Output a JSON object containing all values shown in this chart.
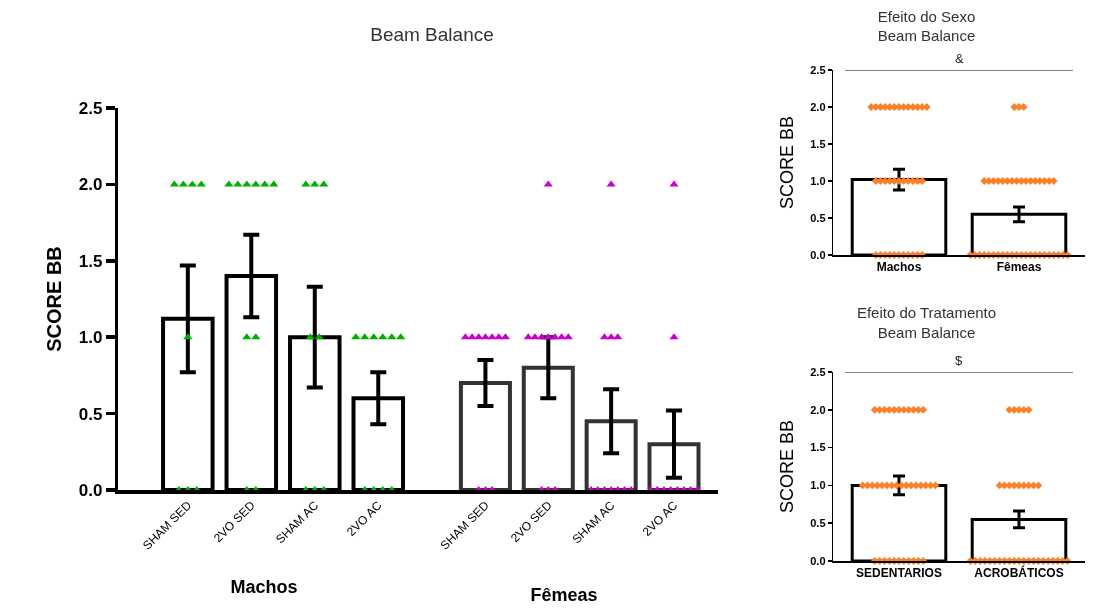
{
  "chart_data": [
    {
      "type": "bar",
      "title": "Beam Balance",
      "ylabel": "SCORE BB",
      "xlabel": "Machos",
      "categories": [
        "SHAM SED",
        "2VO SED",
        "SHAM AC",
        "2VO AC"
      ],
      "values": [
        1.12,
        1.4,
        1.0,
        0.6
      ],
      "errors": [
        0.35,
        0.27,
        0.33,
        0.17
      ],
      "colors": [
        "#000000",
        "#000000",
        "#000000",
        "#000000"
      ],
      "ylim": [
        0,
        2.5
      ],
      "yticks": [
        {
          "value": 0,
          "label": "0.0"
        },
        {
          "value": 0.5,
          "label": "0.5"
        },
        {
          "value": 1,
          "label": "1.0"
        },
        {
          "value": 1.5,
          "label": "1.5"
        },
        {
          "value": 2,
          "label": "2.0"
        },
        {
          "value": 2.5,
          "label": "2.5"
        }
      ],
      "series": [
        {
          "type": "scatter",
          "color": "#00b000",
          "marker": "triangle",
          "x": [
            "SHAM SED",
            "SHAM SED",
            "SHAM SED",
            "SHAM SED",
            "SHAM SED",
            "SHAM SED",
            "SHAM SED",
            "SHAM SED",
            "2VO SED",
            "2VO SED",
            "2VO SED",
            "2VO SED",
            "2VO SED",
            "2VO SED",
            "2VO SED",
            "2VO SED",
            "2VO SED",
            "2VO SED",
            "SHAM AC",
            "SHAM AC",
            "SHAM AC",
            "SHAM AC",
            "SHAM AC",
            "SHAM AC",
            "SHAM AC",
            "SHAM AC",
            "2VO AC",
            "2VO AC",
            "2VO AC",
            "2VO AC",
            "2VO AC",
            "2VO AC",
            "2VO AC",
            "2VO AC",
            "2VO AC",
            "2VO AC"
          ],
          "values": [
            2,
            2,
            2,
            2,
            1,
            0,
            0,
            0,
            2,
            2,
            2,
            2,
            2,
            2,
            1,
            1,
            0,
            0,
            2,
            2,
            2,
            1,
            1,
            0,
            0,
            0,
            1,
            1,
            1,
            1,
            1,
            1,
            0,
            0,
            0,
            0
          ]
        }
      ]
    },
    {
      "type": "bar",
      "xlabel": "Fêmeas",
      "categories": [
        "SHAM SED",
        "2VO SED",
        "SHAM AC",
        "2VO AC"
      ],
      "values": [
        0.7,
        0.8,
        0.45,
        0.3
      ],
      "errors": [
        0.15,
        0.2,
        0.21,
        0.22
      ],
      "colors": [
        "#333333",
        "#333333",
        "#333333",
        "#333333"
      ],
      "ylim": [
        0,
        2.5
      ],
      "tick_labels": "x",
      "series": [
        {
          "type": "scatter",
          "color": "#cc00cc",
          "marker": "triangle",
          "x": [
            "SHAM SED",
            "SHAM SED",
            "SHAM SED",
            "SHAM SED",
            "SHAM SED",
            "SHAM SED",
            "SHAM SED",
            "SHAM SED",
            "SHAM SED",
            "SHAM SED",
            "2VO SED",
            "2VO SED",
            "2VO SED",
            "2VO SED",
            "2VO SED",
            "2VO SED",
            "2VO SED",
            "2VO SED",
            "2VO SED",
            "2VO SED",
            "2VO SED",
            "SHAM AC",
            "SHAM AC",
            "SHAM AC",
            "SHAM AC",
            "SHAM AC",
            "SHAM AC",
            "SHAM AC",
            "SHAM AC",
            "SHAM AC",
            "SHAM AC",
            "SHAM AC",
            "2VO AC",
            "2VO AC",
            "2VO AC",
            "2VO AC",
            "2VO AC",
            "2VO AC",
            "2VO AC",
            "2VO AC",
            "2VO AC",
            "2VO AC"
          ],
          "values": [
            1,
            1,
            1,
            1,
            1,
            1,
            1,
            0,
            0,
            0,
            2,
            1,
            1,
            1,
            1,
            1,
            1,
            1,
            0,
            0,
            0,
            2,
            1,
            1,
            1,
            0,
            0,
            0,
            0,
            0,
            0,
            0,
            2,
            1,
            0,
            0,
            0,
            0,
            0,
            0,
            0,
            0
          ]
        }
      ]
    },
    {
      "type": "bar",
      "title": "Efeito do Sexo\nBeam Balance",
      "ylabel": "SCORE BB",
      "categories": [
        "Machos",
        "Fêmeas"
      ],
      "values": [
        1.02,
        0.55
      ],
      "errors": [
        0.14,
        0.1
      ],
      "colors": [
        "#000000",
        "#000000"
      ],
      "ylim": [
        0,
        2.5
      ],
      "yticks": [
        {
          "value": 0,
          "label": "0.0"
        },
        {
          "value": 0.5,
          "label": "0.5"
        },
        {
          "value": 1,
          "label": "1.0"
        },
        {
          "value": 1.5,
          "label": "1.5"
        },
        {
          "value": 2,
          "label": "2.0"
        },
        {
          "value": 2.5,
          "label": "2.5"
        }
      ],
      "annotations": [
        "&"
      ],
      "series": [
        {
          "type": "scatter",
          "color": "#ff7f27",
          "marker": "diamond",
          "x": [
            "Machos",
            "Machos",
            "Machos",
            "Machos",
            "Machos",
            "Machos",
            "Machos",
            "Machos",
            "Machos",
            "Machos",
            "Machos",
            "Machos",
            "Machos",
            "Machos",
            "Machos",
            "Machos",
            "Machos",
            "Machos",
            "Machos",
            "Machos",
            "Machos",
            "Machos",
            "Machos",
            "Machos",
            "Machos",
            "Machos",
            "Machos",
            "Machos",
            "Machos",
            "Machos",
            "Machos",
            "Machos",
            "Machos",
            "Machos",
            "Machos",
            "Fêmeas",
            "Fêmeas",
            "Fêmeas",
            "Fêmeas",
            "Fêmeas",
            "Fêmeas",
            "Fêmeas",
            "Fêmeas",
            "Fêmeas",
            "Fêmeas",
            "Fêmeas",
            "Fêmeas",
            "Fêmeas",
            "Fêmeas",
            "Fêmeas",
            "Fêmeas",
            "Fêmeas",
            "Fêmeas",
            "Fêmeas",
            "Fêmeas",
            "Fêmeas",
            "Fêmeas",
            "Fêmeas",
            "Fêmeas",
            "Fêmeas",
            "Fêmeas",
            "Fêmeas",
            "Fêmeas",
            "Fêmeas",
            "Fêmeas",
            "Fêmeas",
            "Fêmeas",
            "Fêmeas",
            "Fêmeas",
            "Fêmeas",
            "Fêmeas",
            "Fêmeas",
            "Fêmeas",
            "Fêmeas",
            "Fêmeas",
            "Fêmeas"
          ],
          "values": [
            2,
            2,
            2,
            2,
            2,
            2,
            2,
            2,
            2,
            2,
            2,
            2,
            2,
            1,
            1,
            1,
            1,
            1,
            1,
            1,
            1,
            1,
            1,
            1,
            0,
            0,
            0,
            0,
            0,
            0,
            0,
            0,
            0,
            0,
            0,
            2,
            2,
            2,
            1,
            1,
            1,
            1,
            1,
            1,
            1,
            1,
            1,
            1,
            1,
            1,
            1,
            1,
            1,
            1,
            0,
            0,
            0,
            0,
            0,
            0,
            0,
            0,
            0,
            0,
            0,
            0,
            0,
            0,
            0,
            0,
            0,
            0,
            0,
            0,
            0,
            0
          ]
        }
      ]
    },
    {
      "type": "bar",
      "title": "Efeito do Tratamento\nBeam Balance",
      "ylabel": "SCORE BB",
      "categories": [
        "SEDENTARIOS",
        "ACROBÁTICOS"
      ],
      "values": [
        1.0,
        0.55
      ],
      "errors": [
        0.125,
        0.11
      ],
      "colors": [
        "#000000",
        "#000000"
      ],
      "ylim": [
        0,
        2.5
      ],
      "yticks": [
        {
          "value": 0,
          "label": "0.0"
        },
        {
          "value": 0.5,
          "label": "0.5"
        },
        {
          "value": 1,
          "label": "1.0"
        },
        {
          "value": 1.5,
          "label": "1.5"
        },
        {
          "value": 2,
          "label": "2.0"
        },
        {
          "value": 2.5,
          "label": "2.5"
        }
      ],
      "annotations": [
        "$"
      ],
      "series": [
        {
          "type": "scatter",
          "color": "#ff7f27",
          "marker": "diamond",
          "x": [
            "SEDENTARIOS",
            "SEDENTARIOS",
            "SEDENTARIOS",
            "SEDENTARIOS",
            "SEDENTARIOS",
            "SEDENTARIOS",
            "SEDENTARIOS",
            "SEDENTARIOS",
            "SEDENTARIOS",
            "SEDENTARIOS",
            "SEDENTARIOS",
            "SEDENTARIOS",
            "SEDENTARIOS",
            "SEDENTARIOS",
            "SEDENTARIOS",
            "SEDENTARIOS",
            "SEDENTARIOS",
            "SEDENTARIOS",
            "SEDENTARIOS",
            "SEDENTARIOS",
            "SEDENTARIOS",
            "SEDENTARIOS",
            "SEDENTARIOS",
            "SEDENTARIOS",
            "SEDENTARIOS",
            "SEDENTARIOS",
            "SEDENTARIOS",
            "SEDENTARIOS",
            "SEDENTARIOS",
            "SEDENTARIOS",
            "SEDENTARIOS",
            "SEDENTARIOS",
            "SEDENTARIOS",
            "SEDENTARIOS",
            "SEDENTARIOS",
            "SEDENTARIOS",
            "SEDENTARIOS",
            "SEDENTARIOS",
            "ACROBÁTICOS",
            "ACROBÁTICOS",
            "ACROBÁTICOS",
            "ACROBÁTICOS",
            "ACROBÁTICOS",
            "ACROBÁTICOS",
            "ACROBÁTICOS",
            "ACROBÁTICOS",
            "ACROBÁTICOS",
            "ACROBÁTICOS",
            "ACROBÁTICOS",
            "ACROBÁTICOS",
            "ACROBÁTICOS",
            "ACROBÁTICOS",
            "ACROBÁTICOS",
            "ACROBÁTICOS",
            "ACROBÁTICOS",
            "ACROBÁTICOS",
            "ACROBÁTICOS",
            "ACROBÁTICOS",
            "ACROBÁTICOS",
            "ACROBÁTICOS",
            "ACROBÁTICOS",
            "ACROBÁTICOS",
            "ACROBÁTICOS",
            "ACROBÁTICOS",
            "ACROBÁTICOS",
            "ACROBÁTICOS",
            "ACROBÁTICOS",
            "ACROBÁTICOS",
            "ACROBÁTICOS",
            "ACROBÁTICOS",
            "ACROBÁTICOS",
            "ACROBÁTICOS",
            "ACROBÁTICOS"
          ],
          "values": [
            2,
            2,
            2,
            2,
            2,
            2,
            2,
            2,
            2,
            2,
            2,
            1,
            1,
            1,
            1,
            1,
            1,
            1,
            1,
            1,
            1,
            1,
            1,
            1,
            1,
            1,
            1,
            0,
            0,
            0,
            0,
            0,
            0,
            0,
            0,
            0,
            0,
            0,
            2,
            2,
            2,
            2,
            2,
            1,
            1,
            1,
            1,
            1,
            1,
            1,
            1,
            1,
            0,
            0,
            0,
            0,
            0,
            0,
            0,
            0,
            0,
            0,
            0,
            0,
            0,
            0,
            0,
            0,
            0,
            0,
            0,
            0,
            0
          ]
        }
      ]
    }
  ]
}
